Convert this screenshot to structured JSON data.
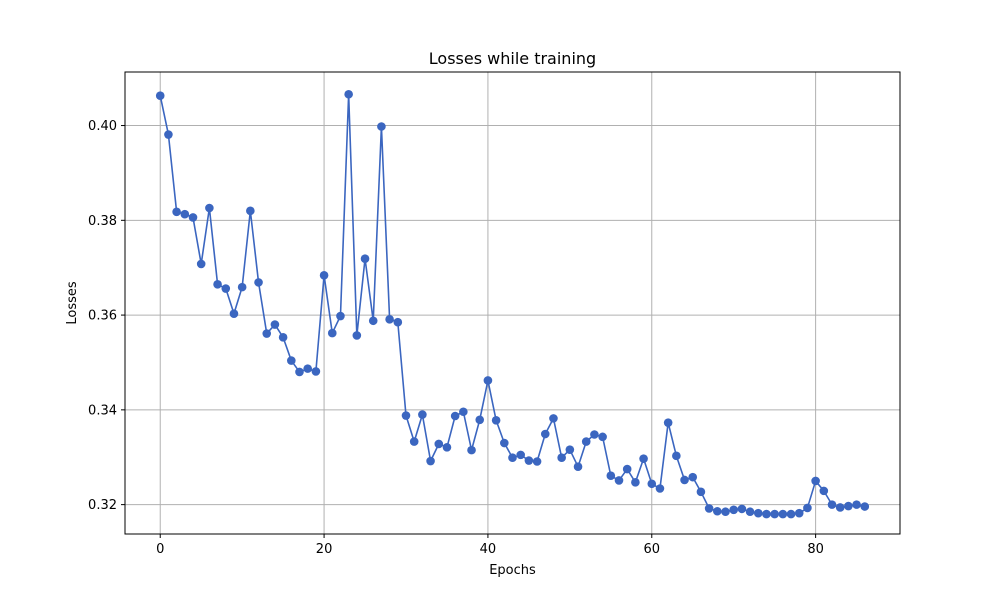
{
  "chart_data": {
    "type": "line",
    "title": "Losses while training",
    "xlabel": "Epochs",
    "ylabel": "Losses",
    "xlim": [
      -4.3,
      90.3
    ],
    "ylim": [
      0.3138,
      0.4113
    ],
    "xticks": [
      0,
      20,
      40,
      60,
      80
    ],
    "yticks": [
      0.32,
      0.34,
      0.36,
      0.38,
      0.4
    ],
    "ytick_labels": [
      "0.32",
      "0.34",
      "0.36",
      "0.38",
      "0.40"
    ],
    "grid": true,
    "marker": "circle",
    "color": "#3b66c0",
    "series": [
      {
        "x": [
          0,
          1,
          2,
          3,
          4,
          5,
          6,
          7,
          8,
          9,
          10,
          11,
          12,
          13,
          14,
          15,
          16,
          17,
          18,
          19,
          20,
          21,
          22,
          23,
          24,
          25,
          26,
          27,
          28,
          29,
          30,
          31,
          32,
          33,
          34,
          35,
          36,
          37,
          38,
          39,
          40,
          41,
          42,
          43,
          44,
          45,
          46,
          47,
          48,
          49,
          50,
          51,
          52,
          53,
          54,
          55,
          56,
          57,
          58,
          59,
          60,
          61,
          62,
          63,
          64,
          65,
          66,
          67,
          68,
          69,
          70,
          71,
          72,
          73,
          74,
          75,
          76,
          77,
          78,
          79,
          80,
          81,
          82,
          83,
          84,
          85,
          86
        ],
        "values": [
          0.4063,
          0.3981,
          0.3818,
          0.3813,
          0.3806,
          0.3708,
          0.3826,
          0.3665,
          0.3656,
          0.3603,
          0.3659,
          0.382,
          0.3669,
          0.3561,
          0.358,
          0.3553,
          0.3504,
          0.348,
          0.3487,
          0.3481,
          0.3684,
          0.3562,
          0.3598,
          0.4066,
          0.3557,
          0.3719,
          0.3588,
          0.3998,
          0.3591,
          0.3585,
          0.3388,
          0.3333,
          0.339,
          0.3292,
          0.3328,
          0.3321,
          0.3387,
          0.3396,
          0.3315,
          0.3379,
          0.3462,
          0.3378,
          0.333,
          0.3299,
          0.3305,
          0.3293,
          0.3291,
          0.3349,
          0.3382,
          0.3299,
          0.3316,
          0.328,
          0.3333,
          0.3348,
          0.3343,
          0.3261,
          0.3251,
          0.3275,
          0.3247,
          0.3297,
          0.3244,
          0.3234,
          0.3373,
          0.3303,
          0.3252,
          0.3258,
          0.3227,
          0.3192,
          0.3186,
          0.3185,
          0.3189,
          0.3191,
          0.3185,
          0.3182,
          0.318,
          0.318,
          0.318,
          0.318,
          0.3182,
          0.3193,
          0.325,
          0.3229,
          0.32,
          0.3194,
          0.3197,
          0.32,
          0.3196
        ]
      }
    ]
  }
}
